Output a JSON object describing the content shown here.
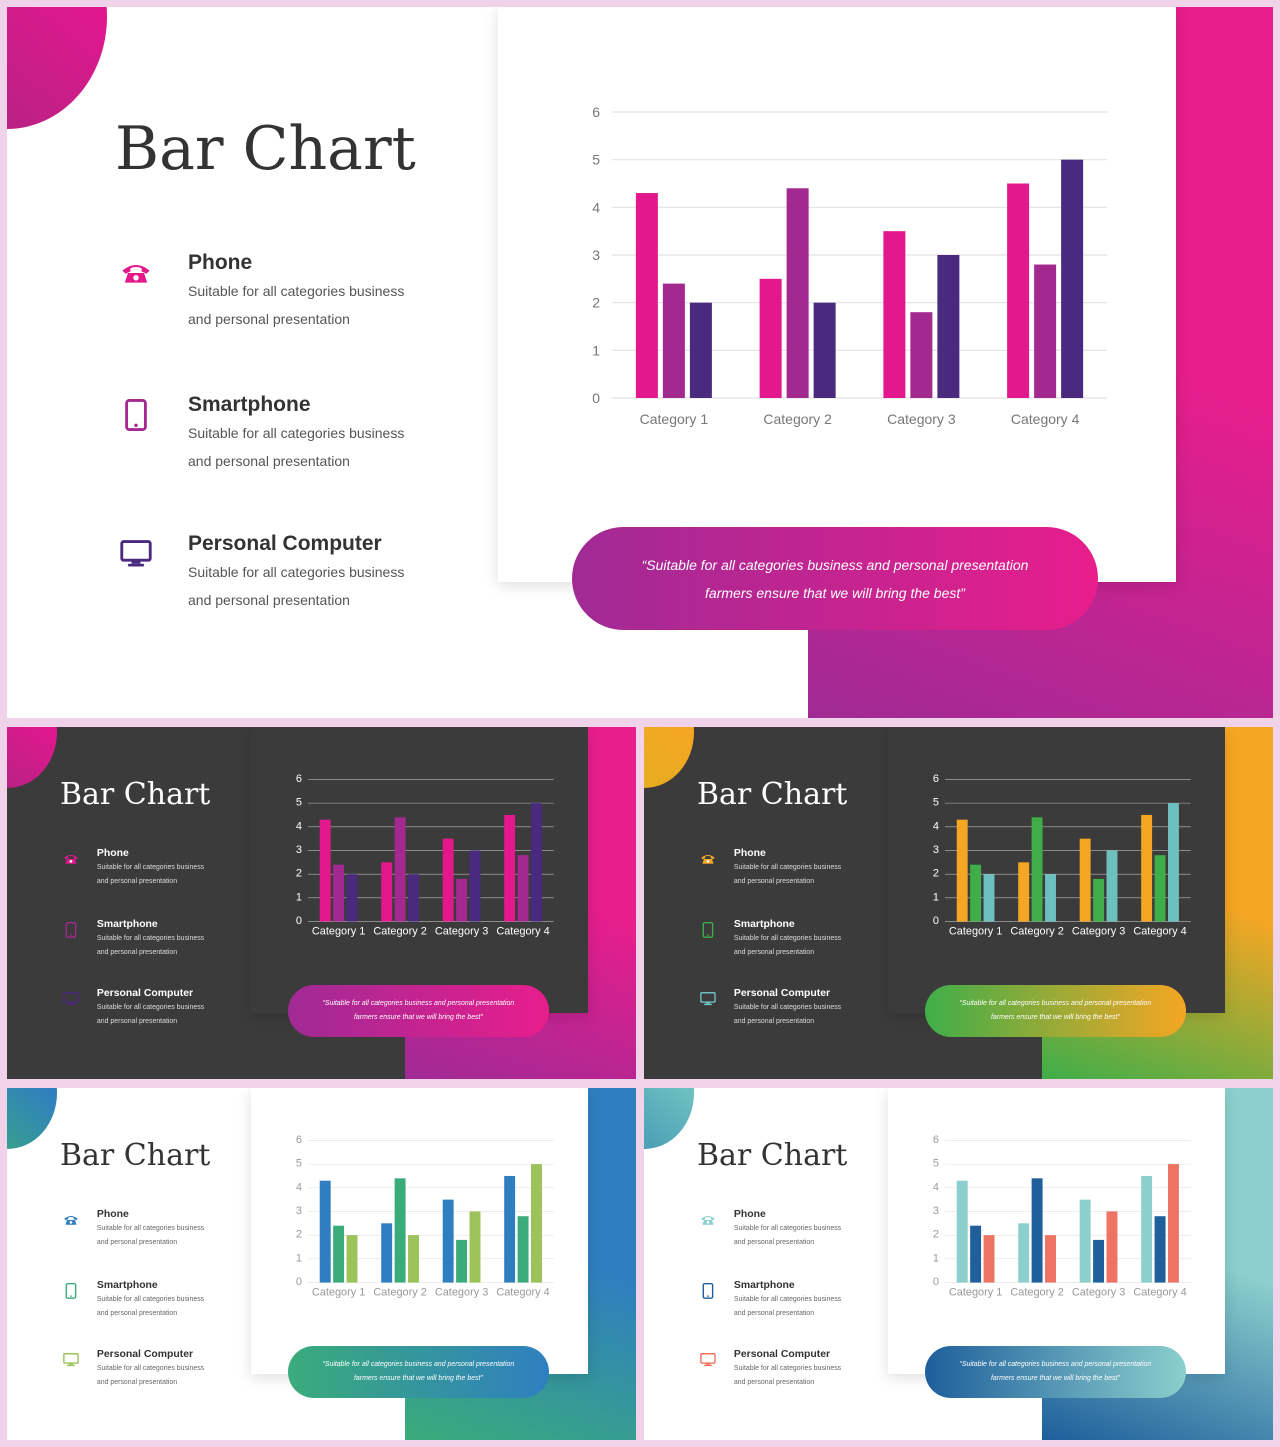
{
  "slides": [
    {
      "theme": "magenta-light",
      "title": "Bar Chart",
      "features": [
        {
          "name": "Phone",
          "desc1": "Suitable for all categories business",
          "desc2": "and personal presentation"
        },
        {
          "name": "Smartphone",
          "desc1": "Suitable for all categories business",
          "desc2": "and personal presentation"
        },
        {
          "name": "Personal Computer",
          "desc1": "Suitable for all categories business",
          "desc2": "and personal presentation"
        }
      ],
      "quote_line1": "“Suitable for all categories business and personal presentation",
      "quote_line2": "farmers ensure that we will bring the best”"
    },
    {
      "theme": "magenta-dark",
      "title": "Bar Chart",
      "features": [
        {
          "name": "Phone",
          "desc1": "Suitable for all categories business",
          "desc2": "and personal presentation"
        },
        {
          "name": "Smartphone",
          "desc1": "Suitable for all categories business",
          "desc2": "and personal presentation"
        },
        {
          "name": "Personal Computer",
          "desc1": "Suitable for all categories business",
          "desc2": "and personal presentation"
        }
      ],
      "quote_line1": "“Suitable for all categories business and personal presentation",
      "quote_line2": "farmers ensure that we will bring the best”"
    },
    {
      "theme": "orange-green-dark",
      "title": "Bar Chart",
      "features": [
        {
          "name": "Phone",
          "desc1": "Suitable for all categories business",
          "desc2": "and personal presentation"
        },
        {
          "name": "Smartphone",
          "desc1": "Suitable for all categories business",
          "desc2": "and personal presentation"
        },
        {
          "name": "Personal Computer",
          "desc1": "Suitable for all categories business",
          "desc2": "and personal presentation"
        }
      ],
      "quote_line1": "“Suitable for all categories business and personal presentation",
      "quote_line2": "farmers ensure that we will bring the best”"
    },
    {
      "theme": "blue-green-light",
      "title": "Bar Chart",
      "features": [
        {
          "name": "Phone",
          "desc1": "Suitable for all categories business",
          "desc2": "and personal presentation"
        },
        {
          "name": "Smartphone",
          "desc1": "Suitable for all categories business",
          "desc2": "and personal presentation"
        },
        {
          "name": "Personal Computer",
          "desc1": "Suitable for all categories business",
          "desc2": "and personal presentation"
        }
      ],
      "quote_line1": "“Suitable for all categories business and personal presentation",
      "quote_line2": "farmers ensure that we will bring the best”"
    },
    {
      "theme": "teal-navy-light",
      "title": "Bar Chart",
      "features": [
        {
          "name": "Phone",
          "desc1": "Suitable for all categories business",
          "desc2": "and personal presentation"
        },
        {
          "name": "Smartphone",
          "desc1": "Suitable for all categories business",
          "desc2": "and personal presentation"
        },
        {
          "name": "Personal Computer",
          "desc1": "Suitable for all categories business",
          "desc2": "and personal presentation"
        }
      ],
      "quote_line1": "“Suitable for all categories business and personal presentation",
      "quote_line2": "farmers ensure that we will bring the best”"
    }
  ],
  "icons": [
    "phone-icon",
    "smartphone-icon",
    "monitor-icon"
  ],
  "chart_data": [
    {
      "type": "bar",
      "categories": [
        "Category 1",
        "Category 2",
        "Category 3",
        "Category 4"
      ],
      "series": [
        {
          "values": [
            4.3,
            2.5,
            3.5,
            4.5
          ],
          "color": "#e3188d"
        },
        {
          "values": [
            2.4,
            4.4,
            1.8,
            2.8
          ],
          "color": "#a3288f"
        },
        {
          "values": [
            2.0,
            2.0,
            3.0,
            5.0
          ],
          "color": "#4a2a7e"
        }
      ],
      "ylim": [
        0,
        6
      ],
      "yticks": [
        0,
        1,
        2,
        3,
        4,
        5,
        6
      ],
      "grid": true,
      "legend": "none"
    },
    {
      "type": "bar",
      "categories": [
        "Category 1",
        "Category 2",
        "Category 3",
        "Category 4"
      ],
      "series": [
        {
          "values": [
            4.3,
            2.5,
            3.5,
            4.5
          ],
          "color": "#e3188d"
        },
        {
          "values": [
            2.4,
            4.4,
            1.8,
            2.8
          ],
          "color": "#a3288f"
        },
        {
          "values": [
            2.0,
            2.0,
            3.0,
            5.0
          ],
          "color": "#4a2a7e"
        }
      ],
      "ylim": [
        0,
        6
      ],
      "yticks": [
        0,
        1,
        2,
        3,
        4,
        5,
        6
      ],
      "grid": true,
      "legend": "none"
    },
    {
      "type": "bar",
      "categories": [
        "Category 1",
        "Category 2",
        "Category 3",
        "Category 4"
      ],
      "series": [
        {
          "values": [
            4.3,
            2.5,
            3.5,
            4.5
          ],
          "color": "#f5a623"
        },
        {
          "values": [
            2.4,
            4.4,
            1.8,
            2.8
          ],
          "color": "#3fae49"
        },
        {
          "values": [
            2.0,
            2.0,
            3.0,
            5.0
          ],
          "color": "#6cc0c0"
        }
      ],
      "ylim": [
        0,
        6
      ],
      "yticks": [
        0,
        1,
        2,
        3,
        4,
        5,
        6
      ],
      "grid": true,
      "legend": "none"
    },
    {
      "type": "bar",
      "categories": [
        "Category 1",
        "Category 2",
        "Category 3",
        "Category 4"
      ],
      "series": [
        {
          "values": [
            4.3,
            2.5,
            3.5,
            4.5
          ],
          "color": "#2f7fc0"
        },
        {
          "values": [
            2.4,
            4.4,
            1.8,
            2.8
          ],
          "color": "#3aac7a"
        },
        {
          "values": [
            2.0,
            2.0,
            3.0,
            5.0
          ],
          "color": "#9cc25a"
        }
      ],
      "ylim": [
        0,
        6
      ],
      "yticks": [
        0,
        1,
        2,
        3,
        4,
        5,
        6
      ],
      "grid": true,
      "legend": "none"
    },
    {
      "type": "bar",
      "categories": [
        "Category 1",
        "Category 2",
        "Category 3",
        "Category 4"
      ],
      "series": [
        {
          "values": [
            4.3,
            2.5,
            3.5,
            4.5
          ],
          "color": "#8ccfcc"
        },
        {
          "values": [
            2.4,
            4.4,
            1.8,
            2.8
          ],
          "color": "#1e5f9c"
        },
        {
          "values": [
            2.0,
            2.0,
            3.0,
            5.0
          ],
          "color": "#ef7362"
        }
      ],
      "ylim": [
        0,
        6
      ],
      "yticks": [
        0,
        1,
        2,
        3,
        4,
        5,
        6
      ],
      "grid": true,
      "legend": "none"
    }
  ]
}
